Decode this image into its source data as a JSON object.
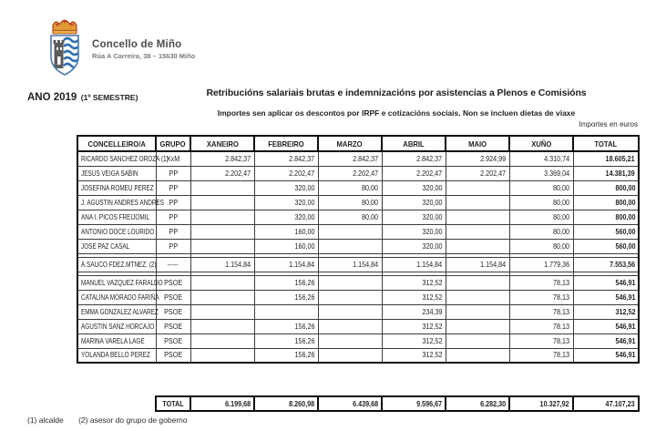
{
  "brand": {
    "name": "Concello de Miño",
    "address": "Rúa A Carreira, 38 – 15630 Miño"
  },
  "header": {
    "period_main": "ANO 2019",
    "period_sub": "(1º SEMESTRE)",
    "title": "Retribucións salariais brutas e indemnizacións por asistencias a Plenos e Comisións",
    "subtitle": "Importes sen aplicar os descontos por IRPF e cotizacións sociais. Non se incluen dietas de viaxe",
    "units_note": "Importes en euros"
  },
  "table": {
    "columns": [
      "CONCELLEIRO/A",
      "GRUPO",
      "XANEIRO",
      "FEBREIRO",
      "MARZO",
      "ABRIL",
      "MAIO",
      "XUÑO",
      "TOTAL"
    ],
    "groups": [
      {
        "rows": [
          {
            "name": "RICARDO SANCHEZ OROZA (1)",
            "group": "XxM",
            "values": [
              "2.842,37",
              "2.842,37",
              "2.842,37",
              "2.842,37",
              "2.924,99",
              "4.310,74"
            ],
            "total": "18.605,21"
          },
          {
            "name": "JESUS VEIGA SABIN",
            "group": "PP",
            "values": [
              "2.202,47",
              "2.202,47",
              "2.202,47",
              "2.202,47",
              "2.202,47",
              "3.369,04"
            ],
            "total": "14.381,39"
          },
          {
            "name": "JOSEFINA ROMEU PEREZ",
            "group": "PP",
            "values": [
              "",
              "320,00",
              "80,00",
              "320,00",
              "",
              "80,00"
            ],
            "total": "800,00"
          },
          {
            "name": "J. AGUSTIN ANDRES ANDRES",
            "group": "PP",
            "values": [
              "",
              "320,00",
              "80,00",
              "320,00",
              "",
              "80,00"
            ],
            "total": "800,00"
          },
          {
            "name": "ANA I. PICOS FREIJOMIL",
            "group": "PP",
            "values": [
              "",
              "320,00",
              "80,00",
              "320,00",
              "",
              "80,00"
            ],
            "total": "800,00"
          },
          {
            "name": "ANTONIO DOCE LOURIDO",
            "group": "PP",
            "values": [
              "",
              "160,00",
              "",
              "320,00",
              "",
              "80,00"
            ],
            "total": "560,00"
          },
          {
            "name": "JOSE PAZ CASAL",
            "group": "PP",
            "values": [
              "",
              "160,00",
              "",
              "320,00",
              "",
              "80,00"
            ],
            "total": "560,00"
          }
        ]
      },
      {
        "rows": [
          {
            "name": "A.SAUCO FDEZ.MTNEZ. (2)",
            "group": "-----",
            "values": [
              "1.154,84",
              "1.154,84",
              "1.154,84",
              "1.154,84",
              "1.154,84",
              "1.779,36"
            ],
            "total": "7.553,56"
          }
        ]
      },
      {
        "rows": [
          {
            "name": "MANUEL VAZQUEZ FARALDO",
            "group": "PSOE",
            "values": [
              "",
              "156,26",
              "",
              "312,52",
              "",
              "78,13"
            ],
            "total": "546,91"
          },
          {
            "name": "CATALINA MORADO FARIÑA",
            "group": "PSOE",
            "values": [
              "",
              "156,26",
              "",
              "312,52",
              "",
              "78,13"
            ],
            "total": "546,91"
          },
          {
            "name": "EMMA GONZALEZ ALVAREZ",
            "group": "PSOE",
            "values": [
              "",
              "",
              "",
              "234,39",
              "",
              "78,13"
            ],
            "total": "312,52"
          },
          {
            "name": "AGUSTIN SANZ HORCAJO",
            "group": "PSOE",
            "values": [
              "",
              "156,26",
              "",
              "312,52",
              "",
              "78,13"
            ],
            "total": "546,91"
          },
          {
            "name": "MARINA VARELA LAGE",
            "group": "PSOE",
            "values": [
              "",
              "156,26",
              "",
              "312,52",
              "",
              "78,13"
            ],
            "total": "546,91"
          },
          {
            "name": "YOLANDA BELLO PEREZ",
            "group": "PSOE",
            "values": [
              "",
              "156,26",
              "",
              "312,52",
              "",
              "78,13"
            ],
            "total": "546,91"
          }
        ]
      }
    ],
    "totals": {
      "label": "TOTAL",
      "values": [
        "6.199,68",
        "8.260,98",
        "6.439,68",
        "9.596,67",
        "6.282,30",
        "10.327,92"
      ],
      "grand_total": "47.107,23"
    }
  },
  "footnotes": {
    "note1": "(1) alcalde",
    "note2": "(2) asesor do grupo de goberno"
  }
}
